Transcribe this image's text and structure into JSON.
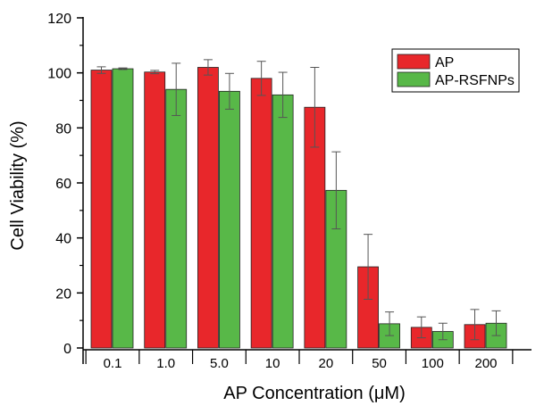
{
  "chart_data": {
    "type": "bar",
    "xlabel": "AP Concentration (μM)",
    "ylabel": "Cell Viability (%)",
    "categories": [
      "0.1",
      "1.0",
      "5.0",
      "10",
      "20",
      "50",
      "100",
      "200"
    ],
    "ylim": [
      0,
      120
    ],
    "yticks": [
      "0",
      "20",
      "40",
      "60",
      "80",
      "100",
      "120"
    ],
    "grid": false,
    "legend_position": "top-right",
    "series": [
      {
        "name": "AP",
        "color": "#e8272b",
        "values": [
          101,
          100.3,
          102,
          98,
          87.5,
          29.5,
          7.5,
          8.5
        ],
        "errors": [
          1.2,
          0.6,
          2.8,
          6.2,
          14.5,
          11.8,
          3.8,
          5.5
        ]
      },
      {
        "name": "AP-RSFNPs",
        "color": "#58b848",
        "values": [
          101.5,
          94,
          93.3,
          92,
          57.3,
          8.8,
          6,
          9
        ],
        "errors": [
          0.3,
          9.5,
          6.5,
          8.2,
          14,
          4.3,
          3,
          4.5
        ]
      }
    ]
  }
}
